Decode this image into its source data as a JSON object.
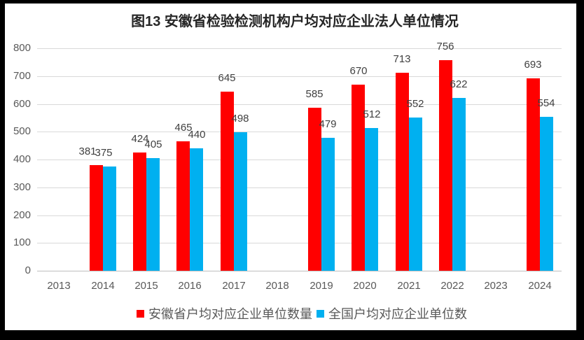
{
  "page": {
    "background": "#FFFFFF",
    "frame_color": "#000000"
  },
  "chart_data": {
    "type": "bar",
    "title": "图13  安徽省检验检测机构户均对应企业法人单位情况",
    "categories": [
      "2013",
      "2014",
      "2015",
      "2016",
      "2017",
      "2018",
      "2019",
      "2020",
      "2021",
      "2022",
      "2023",
      "2024"
    ],
    "series": [
      {
        "name": "安徽省户均对应企业单位数量",
        "color": "#FF0000",
        "values": [
          null,
          381,
          424,
          465,
          645,
          null,
          585,
          670,
          713,
          756,
          null,
          693
        ]
      },
      {
        "name": "全国户均对应企业单位数",
        "color": "#00B0F0",
        "values": [
          null,
          375,
          405,
          440,
          498,
          null,
          479,
          512,
          552,
          622,
          null,
          554
        ]
      }
    ],
    "xlabel": "",
    "ylabel": "",
    "ylim": [
      0,
      800
    ],
    "yticks": [
      0,
      100,
      200,
      300,
      400,
      500,
      600,
      700,
      800
    ],
    "grid": true,
    "legend_position": "bottom",
    "colors": {
      "gridline": "#D9D9D9",
      "axis_line": "#BFBFBF",
      "axis_text": "#595959",
      "data_label_text": "#404040",
      "title_text": "#262626"
    }
  }
}
